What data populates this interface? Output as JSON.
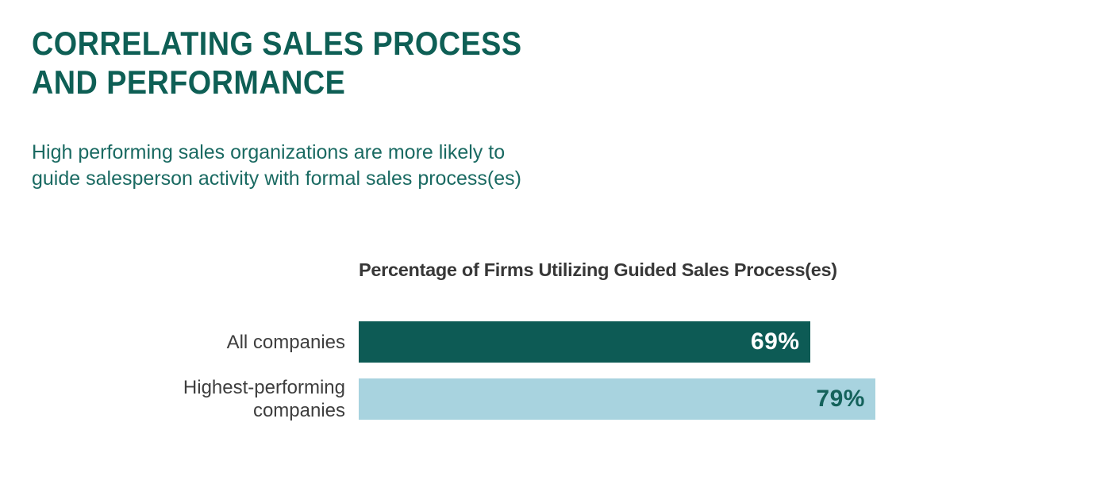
{
  "header": {
    "title": "CORRELATING SALES PROCESS\nAND PERFORMANCE",
    "subtitle": "High performing sales organizations are more likely to\nguide salesperson activity with formal sales process(es)"
  },
  "chart_data": {
    "type": "bar",
    "orientation": "horizontal",
    "title": "Percentage of Firms Utilizing Guided Sales Process(es)",
    "categories": [
      "All companies",
      "Highest-performing companies"
    ],
    "values": [
      69,
      79
    ],
    "value_labels": [
      "69%",
      "79%"
    ],
    "xlim": [
      0,
      100
    ],
    "grid": false,
    "legend": false,
    "bar_colors": [
      "#0d5b55",
      "#a8d3df"
    ],
    "value_label_colors": [
      "#ffffff",
      "#14625b"
    ]
  },
  "colors": {
    "background": "#ffffff",
    "title_text": "#0e5f55",
    "subtitle_text": "#1a6a62",
    "chart_title_text": "#373737",
    "category_label_text": "#3e3e3e"
  }
}
